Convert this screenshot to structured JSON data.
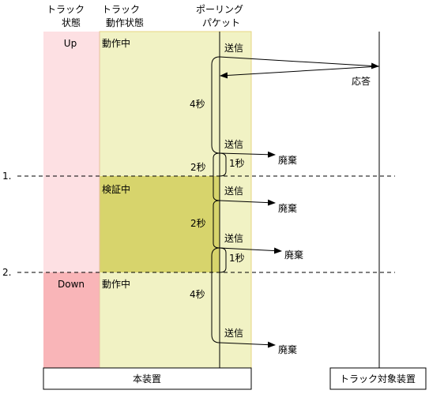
{
  "headers": {
    "track_state": [
      "トラック",
      "状態"
    ],
    "track_op_state": [
      "トラック",
      "動作状態"
    ],
    "polling_packet": [
      "ポーリング",
      "パケット"
    ]
  },
  "states": {
    "up": "Up",
    "down": "Down",
    "op_active": "動作中",
    "op_verifying": "検証中",
    "op_active_2": "動作中"
  },
  "messages": {
    "send_1": "送信",
    "reply": "応答",
    "send_2": "送信",
    "discard_1": "廃棄",
    "send_3": "送信",
    "discard_2": "廃棄",
    "send_4": "送信",
    "discard_3": "廃棄",
    "send_5": "送信",
    "discard_4": "廃棄"
  },
  "intervals": {
    "i1": "4秒",
    "i2": "2秒",
    "i3": "1秒",
    "i4": "2秒",
    "i5": "1秒",
    "i6": "4秒"
  },
  "markers": [
    "1.",
    "2."
  ],
  "devices": {
    "this_device": "本装置",
    "target_device": "トラック対象装置"
  },
  "colors": {
    "up_band": "#fde0e3",
    "down_band": "#f9b5b8",
    "op_band": "#f1f2c4",
    "verify_band": "#d7d46c",
    "band_edge": "#e6d680"
  }
}
